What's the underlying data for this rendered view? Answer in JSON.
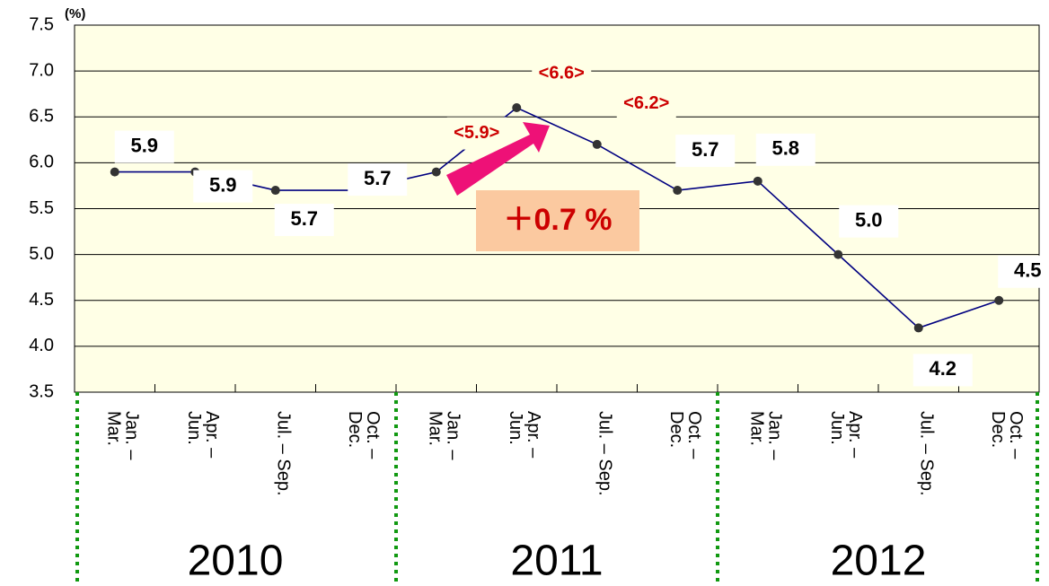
{
  "chart_data": {
    "type": "line",
    "unit_label": "(%)",
    "categories": [
      [
        "Jan. –",
        "Mar."
      ],
      [
        "Apr. –",
        "Jun."
      ],
      [
        "Jul. – Sep."
      ],
      [
        "Oct. –",
        "Dec."
      ],
      [
        "Jan. –",
        "Mar."
      ],
      [
        "Apr. –",
        "Jun."
      ],
      [
        "Jul. – Sep."
      ],
      [
        "Oct. –",
        "Dec."
      ],
      [
        "Jan. –",
        "Mar."
      ],
      [
        "Apr. –",
        "Jun."
      ],
      [
        "Jul. – Sep."
      ],
      [
        "Oct. –",
        "Dec."
      ]
    ],
    "groups": [
      "2010",
      "2011",
      "2012"
    ],
    "series": [
      {
        "color": "#000080",
        "values": [
          5.9,
          5.9,
          5.7,
          5.7,
          5.9,
          6.6,
          6.2,
          5.7,
          5.8,
          5.0,
          4.2,
          4.5
        ],
        "value_labels": [
          "5.9",
          "5.9",
          "5.7",
          "5.7",
          "<5.9>",
          "<6.6>",
          "<6.2>",
          "5.7",
          "5.8",
          "5.0",
          "4.2",
          "4.5"
        ],
        "label_colors": [
          "#000000",
          "#000000",
          "#000000",
          "#000000",
          "#cc0000",
          "#cc0000",
          "#cc0000",
          "#000000",
          "#000000",
          "#000000",
          "#000000",
          "#000000"
        ]
      }
    ],
    "ylim": [
      3.5,
      7.5
    ],
    "yticks": [
      {
        "value": 3.5,
        "label": "3.5"
      },
      {
        "value": 4.0,
        "label": "4.0"
      },
      {
        "value": 4.5,
        "label": "4.5"
      },
      {
        "value": 5.0,
        "label": "5.0"
      },
      {
        "value": 5.5,
        "label": "5.5"
      },
      {
        "value": 6.0,
        "label": "6.0"
      },
      {
        "value": 6.5,
        "label": "6.5"
      },
      {
        "value": 7.0,
        "label": "7.0"
      },
      {
        "value": 7.5,
        "label": "7.5"
      }
    ],
    "annotation": "＋0.7 %",
    "grid": true
  }
}
